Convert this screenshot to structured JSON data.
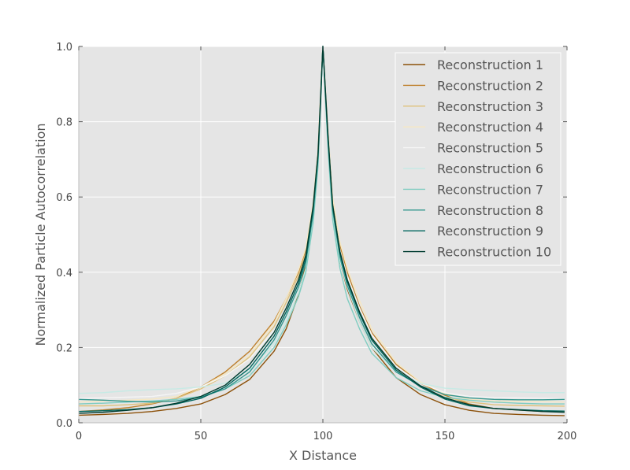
{
  "chart_data": {
    "type": "line",
    "xlabel": "X Distance",
    "ylabel": "Normalized Particle Autocorrelation",
    "xlim": [
      0,
      200
    ],
    "ylim": [
      0.0,
      1.0
    ],
    "x_ticks": [
      0,
      50,
      100,
      150,
      200
    ],
    "x_tick_labels": [
      "0",
      "50",
      "100",
      "150",
      "200"
    ],
    "y_ticks": [
      0.0,
      0.2,
      0.4,
      0.6,
      0.8,
      1.0
    ],
    "y_tick_labels": [
      "0.0",
      "0.2",
      "0.4",
      "0.6",
      "0.8",
      "1.0"
    ],
    "grid": true,
    "legend_position": "top-right",
    "background_color": "#e5e5e5",
    "x": [
      0,
      10,
      20,
      30,
      40,
      50,
      60,
      70,
      80,
      85,
      90,
      93,
      96,
      98,
      99,
      100,
      102,
      104,
      107,
      110,
      115,
      120,
      130,
      140,
      150,
      160,
      170,
      180,
      190,
      199
    ],
    "series": [
      {
        "name": "Reconstruction 1",
        "color": "#8c510a",
        "values": [
          0.02,
          0.022,
          0.025,
          0.03,
          0.038,
          0.05,
          0.075,
          0.115,
          0.19,
          0.25,
          0.34,
          0.42,
          0.55,
          0.7,
          0.85,
          1.0,
          0.76,
          0.56,
          0.43,
          0.355,
          0.27,
          0.2,
          0.12,
          0.075,
          0.048,
          0.033,
          0.025,
          0.022,
          0.02,
          0.019
        ]
      },
      {
        "name": "Reconstruction 2",
        "color": "#bf812d",
        "values": [
          0.03,
          0.034,
          0.04,
          0.05,
          0.065,
          0.095,
          0.135,
          0.19,
          0.27,
          0.33,
          0.4,
          0.46,
          0.58,
          0.72,
          0.86,
          1.0,
          0.78,
          0.59,
          0.47,
          0.4,
          0.31,
          0.24,
          0.155,
          0.105,
          0.073,
          0.05,
          0.038,
          0.034,
          0.03,
          0.029
        ]
      },
      {
        "name": "Reconstruction 3",
        "color": "#dfc27d",
        "values": [
          0.045,
          0.045,
          0.048,
          0.052,
          0.065,
          0.09,
          0.125,
          0.175,
          0.255,
          0.32,
          0.39,
          0.45,
          0.57,
          0.715,
          0.855,
          1.0,
          0.77,
          0.58,
          0.455,
          0.38,
          0.295,
          0.225,
          0.145,
          0.095,
          0.068,
          0.055,
          0.048,
          0.046,
          0.045,
          0.044
        ]
      },
      {
        "name": "Reconstruction 4",
        "color": "#f6e8c3",
        "values": [
          0.055,
          0.058,
          0.06,
          0.063,
          0.07,
          0.095,
          0.13,
          0.18,
          0.265,
          0.33,
          0.405,
          0.465,
          0.585,
          0.725,
          0.86,
          1.0,
          0.785,
          0.6,
          0.48,
          0.41,
          0.325,
          0.25,
          0.16,
          0.108,
          0.078,
          0.062,
          0.058,
          0.057,
          0.056,
          0.055
        ]
      },
      {
        "name": "Reconstruction 5",
        "color": "#f5f5f5",
        "values": [
          0.065,
          0.066,
          0.068,
          0.07,
          0.078,
          0.095,
          0.125,
          0.17,
          0.245,
          0.305,
          0.38,
          0.44,
          0.565,
          0.71,
          0.85,
          1.0,
          0.77,
          0.58,
          0.46,
          0.39,
          0.305,
          0.235,
          0.15,
          0.105,
          0.08,
          0.07,
          0.067,
          0.066,
          0.065,
          0.064
        ]
      },
      {
        "name": "Reconstruction 6",
        "color": "#c7eae5",
        "values": [
          0.078,
          0.08,
          0.085,
          0.088,
          0.09,
          0.095,
          0.105,
          0.14,
          0.21,
          0.27,
          0.345,
          0.41,
          0.54,
          0.69,
          0.84,
          1.0,
          0.75,
          0.555,
          0.43,
          0.36,
          0.27,
          0.2,
          0.135,
          0.105,
          0.092,
          0.088,
          0.085,
          0.082,
          0.08,
          0.08
        ]
      },
      {
        "name": "Reconstruction 7",
        "color": "#80cdc1",
        "values": [
          0.05,
          0.052,
          0.055,
          0.058,
          0.062,
          0.07,
          0.09,
          0.125,
          0.2,
          0.26,
          0.335,
          0.4,
          0.53,
          0.68,
          0.835,
          1.0,
          0.74,
          0.54,
          0.41,
          0.33,
          0.25,
          0.185,
          0.12,
          0.085,
          0.068,
          0.06,
          0.055,
          0.052,
          0.05,
          0.05
        ]
      },
      {
        "name": "Reconstruction 8",
        "color": "#35978f",
        "values": [
          0.062,
          0.06,
          0.057,
          0.055,
          0.058,
          0.068,
          0.09,
          0.135,
          0.22,
          0.285,
          0.36,
          0.425,
          0.555,
          0.7,
          0.845,
          1.0,
          0.76,
          0.565,
          0.44,
          0.365,
          0.28,
          0.21,
          0.135,
          0.098,
          0.075,
          0.066,
          0.062,
          0.061,
          0.061,
          0.062
        ]
      },
      {
        "name": "Reconstruction 9",
        "color": "#01665e",
        "values": [
          0.03,
          0.032,
          0.035,
          0.04,
          0.05,
          0.065,
          0.095,
          0.145,
          0.23,
          0.295,
          0.37,
          0.435,
          0.565,
          0.71,
          0.85,
          1.0,
          0.77,
          0.575,
          0.45,
          0.375,
          0.29,
          0.22,
          0.14,
          0.095,
          0.063,
          0.045,
          0.038,
          0.035,
          0.032,
          0.031
        ]
      },
      {
        "name": "Reconstruction 10",
        "color": "#003c30",
        "values": [
          0.025,
          0.028,
          0.033,
          0.04,
          0.052,
          0.07,
          0.1,
          0.155,
          0.24,
          0.305,
          0.38,
          0.445,
          0.575,
          0.715,
          0.855,
          1.0,
          0.775,
          0.58,
          0.455,
          0.38,
          0.295,
          0.225,
          0.145,
          0.098,
          0.066,
          0.048,
          0.038,
          0.034,
          0.03,
          0.028
        ]
      }
    ]
  }
}
